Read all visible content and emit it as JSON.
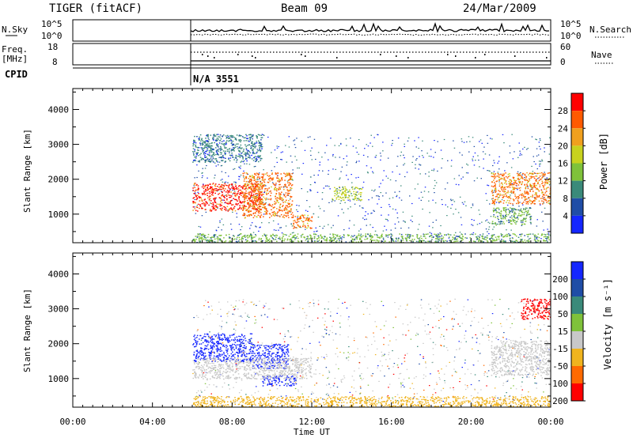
{
  "header": {
    "radar": "TIGER (fitACF)",
    "beam": "Beam 09",
    "date": "24/Mar/2009"
  },
  "top_panels": {
    "nsky_label": "N.Sky",
    "nsky_ticks": [
      "10^5",
      "10^0"
    ],
    "nsearch_label": "N.Search",
    "nsearch_ticks": [
      "10^5",
      "10^0"
    ],
    "freq_label_1": "Freq.",
    "freq_label_2": "[MHz]",
    "freq_ticks": [
      "18",
      "8"
    ],
    "nave_label": "Nave",
    "nave_ticks": [
      "60",
      "0"
    ],
    "cpid_label": "CPID",
    "cpid_value": "N/A 3551"
  },
  "chart_data": [
    {
      "type": "heatmap",
      "name": "power",
      "ylabel": "Slant Range [km]",
      "xlabel": "Time UT",
      "x_ticks": [
        "00:00",
        "04:00",
        "08:00",
        "12:00",
        "16:00",
        "20:00",
        "00:00"
      ],
      "y_ticks": [
        "1000",
        "2000",
        "3000",
        "4000"
      ],
      "xlim_hours": [
        0,
        24
      ],
      "ylim_km": [
        180,
        4600
      ],
      "colorbar": {
        "title": "Power [dB]",
        "labels": [
          "4",
          "8",
          "12",
          "16",
          "20",
          "24",
          "28"
        ],
        "colors": [
          "#1426ff",
          "#1f4da6",
          "#3a8a7a",
          "#7fc23a",
          "#c8d21e",
          "#f0a01e",
          "#ff5a00",
          "#ff0000"
        ]
      },
      "features": [
        {
          "t": [
            6.0,
            9.5
          ],
          "range_km": [
            1100,
            1900
          ],
          "dB": 28
        },
        {
          "t": [
            8.5,
            11.0
          ],
          "range_km": [
            900,
            2200
          ],
          "dB": 26
        },
        {
          "t": [
            11.0,
            12.0
          ],
          "range_km": [
            600,
            1000
          ],
          "dB": 24
        },
        {
          "t": [
            13.0,
            14.5
          ],
          "range_km": [
            1400,
            1800
          ],
          "dB": 16
        },
        {
          "t": [
            21.0,
            24.0
          ],
          "range_km": [
            1300,
            2200
          ],
          "dB": 26
        },
        {
          "t": [
            21.0,
            23.0
          ],
          "range_km": [
            700,
            1200
          ],
          "dB": 14
        },
        {
          "t": [
            6.0,
            9.5
          ],
          "range_km": [
            2500,
            3300
          ],
          "dB": 8
        },
        {
          "t": [
            6.0,
            24.0
          ],
          "range_km": [
            200,
            450
          ],
          "dB": 12
        }
      ]
    },
    {
      "type": "heatmap",
      "name": "velocity",
      "ylabel": "Slant Range [km]",
      "xlabel": "Time UT",
      "x_ticks": [
        "00:00",
        "04:00",
        "08:00",
        "12:00",
        "16:00",
        "20:00",
        "00:00"
      ],
      "y_ticks": [
        "1000",
        "2000",
        "3000",
        "4000"
      ],
      "xlim_hours": [
        0,
        24
      ],
      "ylim_km": [
        180,
        4600
      ],
      "colorbar": {
        "title": "Velocity [m s⁻¹]",
        "labels": [
          "200",
          "100",
          "50",
          "15",
          "-15",
          "-50",
          "-100",
          "-200"
        ],
        "colors": [
          "#1426ff",
          "#1f4da6",
          "#3a8a7a",
          "#7fc23a",
          "#c8c8c8",
          "#f0b41e",
          "#ff6a00",
          "#ff0000"
        ]
      },
      "features": [
        {
          "t": [
            6.0,
            9.0
          ],
          "range_km": [
            1500,
            2300
          ],
          "velocity": 200
        },
        {
          "t": [
            9.0,
            10.8
          ],
          "range_km": [
            1300,
            2000
          ],
          "velocity": 200
        },
        {
          "t": [
            9.5,
            11.2
          ],
          "range_km": [
            800,
            1100
          ],
          "velocity": 200
        },
        {
          "t": [
            6.0,
            12.0
          ],
          "range_km": [
            1000,
            1600
          ],
          "velocity": 0
        },
        {
          "t": [
            21.0,
            24.0
          ],
          "range_km": [
            1100,
            2100
          ],
          "velocity": 0
        },
        {
          "t": [
            22.5,
            24.0
          ],
          "range_km": [
            2700,
            3300
          ],
          "velocity": -200
        },
        {
          "t": [
            6.0,
            24.0
          ],
          "range_km": [
            200,
            500
          ],
          "velocity": -50
        }
      ]
    }
  ]
}
